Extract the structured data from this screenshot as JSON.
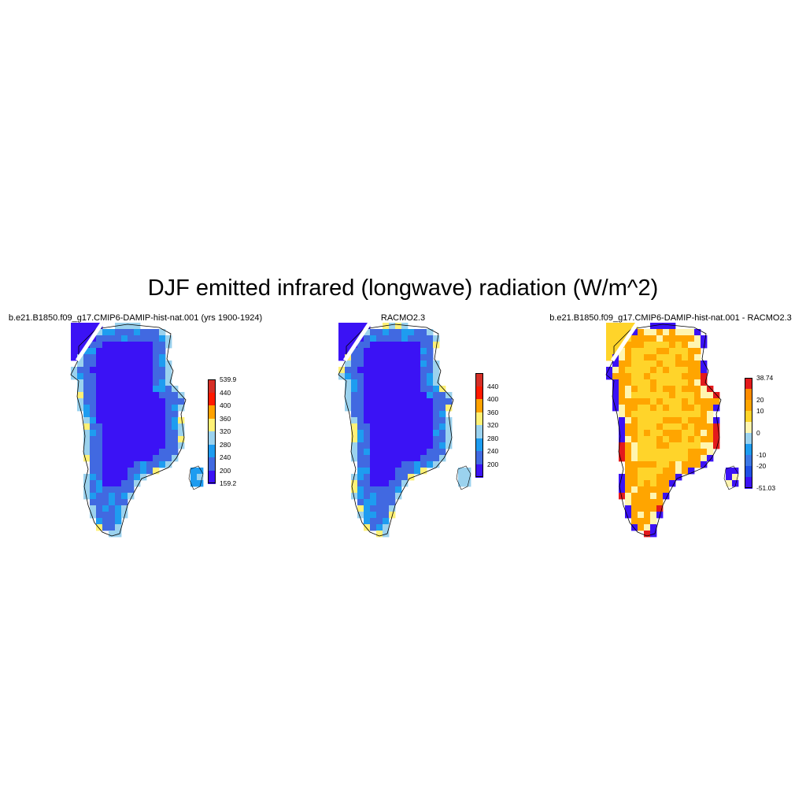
{
  "title": "DJF emitted infrared (longwave) radiation (W/m^2)",
  "panels": [
    {
      "title": "b.e21.B1850.f09_g17.CMIP6-DAMIP-hist-nat.001 (yrs 1900-1924)",
      "colorbar": {
        "labels": [
          "539.9",
          "440",
          "400",
          "360",
          "320",
          "280",
          "240",
          "200",
          "159.2"
        ],
        "colors": [
          "#d62f27",
          "#ff1a00",
          "#ffa200",
          "#fff176",
          "#9bd2ee",
          "#1e9cf0",
          "#4169e1",
          "#3b12f5"
        ]
      },
      "field": {
        "interior": "#3b12f5",
        "ring": "#4169e1",
        "edge": "#1e9cf0",
        "outer": "#9bd2ee",
        "rare": "#fff176"
      }
    },
    {
      "title": "RACMO2.3",
      "colorbar": {
        "labels": [
          "",
          "440",
          "400",
          "360",
          "320",
          "280",
          "240",
          "200",
          ""
        ],
        "colors": [
          "#d62f27",
          "#ff1a00",
          "#ffa200",
          "#fff176",
          "#9bd2ee",
          "#1e9cf0",
          "#4169e1",
          "#3b12f5"
        ]
      },
      "field": {
        "interior": "#3b12f5",
        "ring": "#4169e1",
        "edge": "#1e9cf0",
        "outer": "#9bd2ee",
        "rare": "#fff176"
      }
    },
    {
      "title": "b.e21.B1850.f09_g17.CMIP6-DAMIP-hist-nat.001 - RACMO2.3",
      "colorbar": {
        "labels": [
          "38.74",
          "20",
          "10",
          "0",
          "-10",
          "-20",
          "-51.03"
        ],
        "colors": [
          "#e31a1c",
          "#ff8c00",
          "#ffa500",
          "#ffd42a",
          "#fff5b0",
          "#9bd2ee",
          "#1e9cf0",
          "#3c78e6",
          "#2050e6",
          "#3b12f5"
        ]
      },
      "field": {
        "interior": "#ffd42a",
        "ring": "#ffa500",
        "edge": "#fff5b0",
        "outer": "#3b12f5",
        "rare": "#e31a1c"
      }
    }
  ]
}
